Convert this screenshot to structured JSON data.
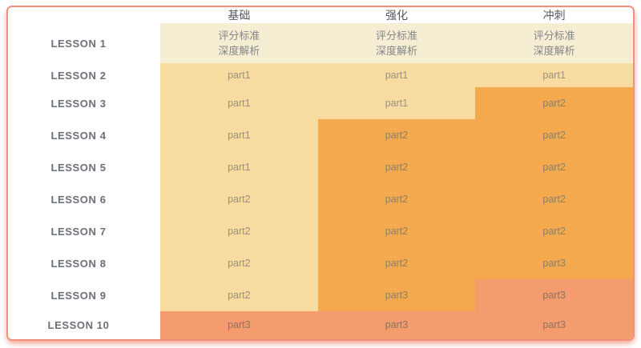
{
  "card_title": "course-schedule",
  "colors": {
    "cream": "#f5eed3",
    "yellow": "#f8dba1",
    "orange": "#f4a94f",
    "salmon": "#f59c6e",
    "border": "#ef917c",
    "header_text": "#55595f",
    "label_text": "#6b7078",
    "cream_text": "#84868b",
    "yellow_text": "#9b9180",
    "orange_text": "#8d8062",
    "salmon_text": "#8c7260"
  },
  "chart_data": {
    "type": "table",
    "title": "",
    "columns": [
      "基础",
      "强化",
      "冲刺"
    ],
    "row_labels": [
      "LESSON 1",
      "LESSON 2",
      "LESSON 3",
      "LESSON 4",
      "LESSON 5",
      "LESSON 6",
      "LESSON 7",
      "LESSON 8",
      "LESSON 9",
      "LESSON 10"
    ],
    "rows": [
      {
        "label": "LESSON 1",
        "cells": [
          {
            "lines": [
              "评分标准",
              "深度解析"
            ],
            "tone": "cream"
          },
          {
            "lines": [
              "评分标准",
              "深度解析"
            ],
            "tone": "cream"
          },
          {
            "lines": [
              "评分标准",
              "深度解析"
            ],
            "tone": "cream"
          }
        ]
      },
      {
        "label": "LESSON 2",
        "cells": [
          {
            "lines": [
              "part1"
            ],
            "tone": "yellow"
          },
          {
            "lines": [
              "part1"
            ],
            "tone": "yellow"
          },
          {
            "lines": [
              "part1"
            ],
            "tone": "yellow"
          }
        ]
      },
      {
        "label": "LESSON 3",
        "cells": [
          {
            "lines": [
              "part1"
            ],
            "tone": "yellow"
          },
          {
            "lines": [
              "part1"
            ],
            "tone": "yellow"
          },
          {
            "lines": [
              "part2"
            ],
            "tone": "orange"
          }
        ]
      },
      {
        "label": "LESSON 4",
        "cells": [
          {
            "lines": [
              "part1"
            ],
            "tone": "yellow"
          },
          {
            "lines": [
              "part2"
            ],
            "tone": "orange"
          },
          {
            "lines": [
              "part2"
            ],
            "tone": "orange"
          }
        ]
      },
      {
        "label": "LESSON 5",
        "cells": [
          {
            "lines": [
              "part1"
            ],
            "tone": "yellow"
          },
          {
            "lines": [
              "part2"
            ],
            "tone": "orange"
          },
          {
            "lines": [
              "part2"
            ],
            "tone": "orange"
          }
        ]
      },
      {
        "label": "LESSON 6",
        "cells": [
          {
            "lines": [
              "part2"
            ],
            "tone": "yellow"
          },
          {
            "lines": [
              "part2"
            ],
            "tone": "orange"
          },
          {
            "lines": [
              "part2"
            ],
            "tone": "orange"
          }
        ]
      },
      {
        "label": "LESSON 7",
        "cells": [
          {
            "lines": [
              "part2"
            ],
            "tone": "yellow"
          },
          {
            "lines": [
              "part2"
            ],
            "tone": "orange"
          },
          {
            "lines": [
              "part2"
            ],
            "tone": "orange"
          }
        ]
      },
      {
        "label": "LESSON 8",
        "cells": [
          {
            "lines": [
              "part2"
            ],
            "tone": "yellow"
          },
          {
            "lines": [
              "part2"
            ],
            "tone": "orange"
          },
          {
            "lines": [
              "part3"
            ],
            "tone": "orange"
          }
        ]
      },
      {
        "label": "LESSON 9",
        "cells": [
          {
            "lines": [
              "part2"
            ],
            "tone": "yellow"
          },
          {
            "lines": [
              "part3"
            ],
            "tone": "orange"
          },
          {
            "lines": [
              "part3"
            ],
            "tone": "salmon"
          }
        ]
      },
      {
        "label": "LESSON 10",
        "cells": [
          {
            "lines": [
              "part3"
            ],
            "tone": "salmon"
          },
          {
            "lines": [
              "part3"
            ],
            "tone": "salmon"
          },
          {
            "lines": [
              "part3"
            ],
            "tone": "salmon"
          }
        ]
      }
    ]
  }
}
